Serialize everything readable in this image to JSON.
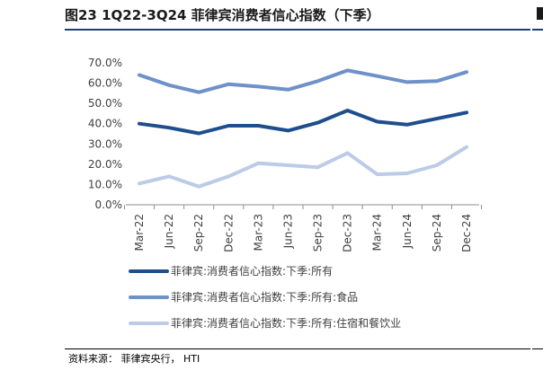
{
  "title": "图23 1Q22-3Q24 菲律宾消费者信心指数（下季）",
  "source": "资料来源：  菲律宾央行，  HTI",
  "chart_data": {
    "type": "line",
    "categories": [
      "Mar-22",
      "Jun-22",
      "Sep-22",
      "Dec-22",
      "Mar-23",
      "Jun-23",
      "Sep-23",
      "Dec-23",
      "Mar-24",
      "Jun-24",
      "Sep-24",
      "Dec-24"
    ],
    "y_ticks": [
      "0.0%",
      "10.0%",
      "20.0%",
      "30.0%",
      "40.0%",
      "50.0%",
      "60.0%",
      "70.0%"
    ],
    "ylim": [
      0,
      70
    ],
    "grid": false,
    "legend_position": "bottom",
    "series": [
      {
        "name": "菲律宾:消费者信心指数:下季:所有",
        "color": "#1f4e8c",
        "values": [
          40.0,
          38.0,
          35.2,
          39.0,
          39.0,
          36.6,
          40.5,
          46.5,
          41.0,
          39.5,
          42.5,
          45.5
        ]
      },
      {
        "name": "菲律宾:消费者信心指数:下季:所有:食品",
        "color": "#6f91c9",
        "values": [
          64.0,
          59.0,
          55.5,
          59.5,
          58.3,
          56.8,
          61.0,
          66.3,
          63.5,
          60.5,
          61.0,
          65.5
        ]
      },
      {
        "name": "菲律宾:消费者信心指数:下季:所有:住宿和餐饮业",
        "color": "#bccbe6",
        "values": [
          10.5,
          14.0,
          9.0,
          14.0,
          20.5,
          19.5,
          18.5,
          25.5,
          15.0,
          15.5,
          19.5,
          28.5
        ]
      }
    ]
  }
}
